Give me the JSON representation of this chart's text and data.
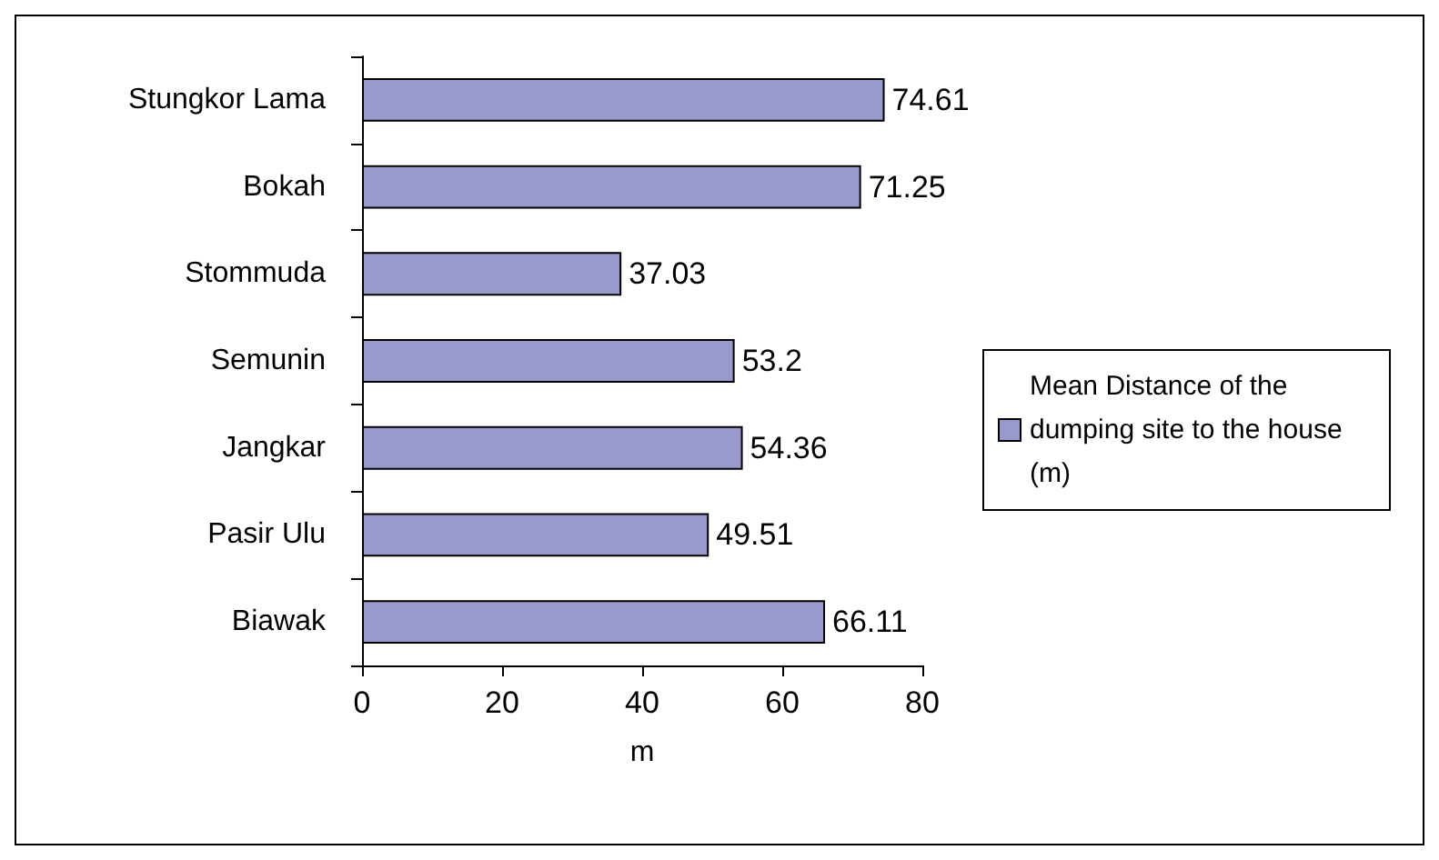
{
  "chart_data": {
    "type": "bar",
    "orientation": "horizontal",
    "xlabel": "m",
    "categories": [
      "Stungkor Lama",
      "Bokah",
      "Stommuda",
      "Semunin",
      "Jangkar",
      "Pasir Ulu",
      "Biawak"
    ],
    "series": [
      {
        "name": "Mean Distance of the dumping site to the house (m)",
        "color": "#9999cc",
        "values": [
          74.61,
          71.25,
          37.03,
          53.2,
          54.36,
          49.51,
          66.11
        ]
      }
    ],
    "xlim": [
      0,
      80
    ],
    "xticks": [
      0,
      20,
      40,
      60,
      80
    ],
    "data_labels": true,
    "grid": false,
    "legend": "right"
  }
}
